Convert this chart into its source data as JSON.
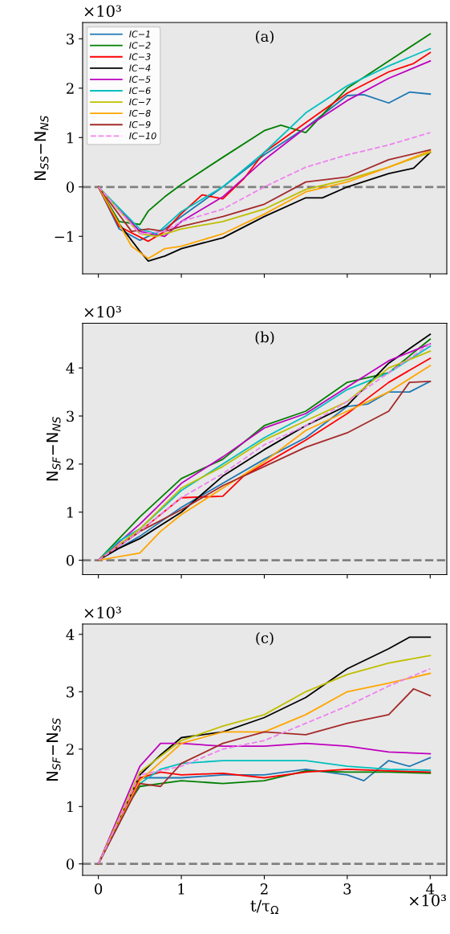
{
  "chart_data": [
    {
      "type": "line",
      "ylabel": "N$_{SS}$−N$_{NS}$",
      "annotations": [
        "(a)",
        "×10³"
      ],
      "xlim": [
        -0.19,
        4.2
      ],
      "xticks": [
        0,
        1,
        2,
        3,
        4
      ],
      "ylim": [
        -1.76,
        3.33
      ],
      "yticks": [
        {
          "value": -1,
          "label": "−1"
        },
        0,
        1,
        2,
        3
      ],
      "tick_labels": "y",
      "legend": "top left",
      "grid": false,
      "ref_lines": [
        {
          "axis": "y",
          "value": 0,
          "label": null,
          "color": "#808080",
          "line_style": "dashed"
        }
      ],
      "series": [
        {
          "name": "IC−1",
          "color": "#1f77b4",
          "x": [
            0,
            0.25,
            0.5,
            0.8,
            1,
            1.5,
            2,
            2.5,
            3,
            3.2,
            3.5,
            3.75,
            4
          ],
          "values": [
            0,
            -0.85,
            -1.08,
            -0.85,
            -0.6,
            0,
            0.65,
            1.2,
            1.85,
            1.87,
            1.7,
            1.92,
            1.88
          ]
        },
        {
          "name": "IC−2",
          "color": "#008000",
          "x": [
            0,
            0.25,
            0.5,
            0.6,
            0.8,
            1,
            1.5,
            2,
            2.2,
            2.5,
            3,
            3.5,
            4
          ],
          "values": [
            0,
            -0.7,
            -0.76,
            -0.49,
            -0.2,
            0.05,
            0.6,
            1.14,
            1.25,
            1.1,
            2.0,
            2.55,
            3.1
          ]
        },
        {
          "name": "IC−3",
          "color": "#ff0000",
          "x": [
            0,
            0.25,
            0.6,
            0.8,
            1,
            1.25,
            1.5,
            1.75,
            2,
            2.5,
            3,
            3.5,
            3.8,
            4
          ],
          "values": [
            0,
            -0.8,
            -1.1,
            -0.9,
            -0.54,
            -0.16,
            -0.24,
            0.16,
            0.7,
            1.3,
            1.9,
            2.33,
            2.5,
            2.72
          ]
        },
        {
          "name": "IC−4",
          "color": "#000000",
          "x": [
            0,
            0.25,
            0.5,
            0.6,
            0.8,
            1,
            1.5,
            2,
            2.5,
            2.7,
            3,
            3.5,
            3.8,
            4
          ],
          "values": [
            0,
            -0.75,
            -1.3,
            -1.5,
            -1.4,
            -1.25,
            -1.03,
            -0.6,
            -0.22,
            -0.22,
            0,
            0.27,
            0.38,
            0.7
          ]
        },
        {
          "name": "IC−5",
          "color": "#bf00bf",
          "x": [
            0,
            0.5,
            0.8,
            1,
            1.5,
            2,
            2.5,
            3,
            3.5,
            4
          ],
          "values": [
            0,
            -0.9,
            -1.0,
            -0.7,
            -0.2,
            0.55,
            1.2,
            1.75,
            2.2,
            2.55
          ]
        },
        {
          "name": "IC−6",
          "color": "#00bfbf",
          "x": [
            0,
            0.5,
            0.7,
            1,
            1.5,
            2,
            2.5,
            3,
            3.5,
            4
          ],
          "values": [
            0,
            -0.85,
            -0.95,
            -0.5,
            0,
            0.7,
            1.5,
            2.05,
            2.45,
            2.8
          ]
        },
        {
          "name": "IC−7",
          "color": "#bfbf00",
          "x": [
            0,
            0.5,
            0.7,
            1,
            1.5,
            2,
            2.5,
            3,
            3.5,
            4
          ],
          "values": [
            0,
            -0.95,
            -1.0,
            -0.85,
            -0.7,
            -0.45,
            -0.05,
            0.15,
            0.4,
            0.7
          ]
        },
        {
          "name": "IC−8",
          "color": "#ffa500",
          "x": [
            0,
            0.4,
            0.6,
            0.8,
            1,
            1.5,
            2,
            2.5,
            3,
            3.5,
            4
          ],
          "values": [
            0,
            -1.2,
            -1.45,
            -1.25,
            -1.2,
            -0.95,
            -0.55,
            -0.1,
            0.1,
            0.4,
            0.73
          ]
        },
        {
          "name": "IC−9",
          "color": "#a52a2a",
          "x": [
            0,
            0.4,
            0.6,
            0.8,
            1,
            1.5,
            2,
            2.5,
            3,
            3.5,
            4
          ],
          "values": [
            0,
            -0.9,
            -0.85,
            -0.9,
            -0.8,
            -0.6,
            -0.35,
            0.1,
            0.2,
            0.55,
            0.75
          ]
        },
        {
          "name": "IC−10",
          "color": "#ee82ee",
          "line_style": "dashed",
          "x": [
            0,
            0.5,
            0.8,
            1,
            1.5,
            2,
            2.5,
            3,
            3.5,
            4
          ],
          "values": [
            0,
            -0.95,
            -0.9,
            -0.7,
            -0.45,
            0,
            0.4,
            0.65,
            0.85,
            1.1
          ]
        }
      ]
    },
    {
      "type": "line",
      "ylabel": "N$_{SF}$−N$_{NS}$",
      "annotations": [
        "(b)",
        "×10³"
      ],
      "xlim": [
        -0.19,
        4.2
      ],
      "xticks": [
        0,
        1,
        2,
        3,
        4
      ],
      "ylim": [
        -0.3,
        4.93
      ],
      "yticks": [
        0,
        1,
        2,
        3,
        4
      ],
      "tick_labels": "y",
      "grid": false,
      "ref_lines": [
        {
          "axis": "y",
          "value": 0,
          "label": null,
          "color": "#808080",
          "line_style": "dashed"
        }
      ],
      "series": [
        {
          "color": "#1f77b4",
          "x": [
            0,
            0.5,
            1,
            1.5,
            2,
            2.5,
            3,
            3.25,
            3.5,
            3.75,
            4
          ],
          "values": [
            0,
            0.5,
            1.1,
            1.6,
            2.1,
            2.55,
            3.2,
            3.25,
            3.5,
            3.5,
            3.72
          ]
        },
        {
          "color": "#008000",
          "x": [
            0,
            0.5,
            1,
            1.5,
            2,
            2.5,
            3,
            3.5,
            4
          ],
          "values": [
            0,
            0.9,
            1.7,
            2.1,
            2.8,
            3.1,
            3.7,
            3.9,
            4.6
          ]
        },
        {
          "color": "#ff0000",
          "x": [
            0,
            0.5,
            1,
            1.5,
            1.75,
            2,
            2.5,
            3,
            3.5,
            4
          ],
          "values": [
            0,
            0.6,
            1.3,
            1.33,
            1.75,
            2.0,
            2.5,
            3.05,
            3.7,
            4.2
          ]
        },
        {
          "color": "#000000",
          "x": [
            0,
            0.25,
            0.5,
            1,
            1.5,
            2,
            2.5,
            3,
            3.5,
            4
          ],
          "values": [
            0,
            0.25,
            0.45,
            1.0,
            1.75,
            2.3,
            2.8,
            3.22,
            4.1,
            4.7
          ]
        },
        {
          "color": "#bf00bf",
          "x": [
            0,
            0.5,
            1,
            1.5,
            2,
            2.5,
            3,
            3.5,
            4
          ],
          "values": [
            0,
            0.75,
            1.6,
            2.15,
            2.75,
            3.05,
            3.6,
            4.15,
            4.5
          ]
        },
        {
          "color": "#00bfbf",
          "x": [
            0,
            0.25,
            0.5,
            1,
            1.5,
            2,
            2.5,
            3,
            3.5,
            4
          ],
          "values": [
            0,
            0.4,
            0.65,
            1.45,
            2.0,
            2.55,
            3.0,
            3.55,
            3.9,
            4.45
          ]
        },
        {
          "color": "#bfbf00",
          "x": [
            0,
            0.5,
            1,
            1.5,
            2,
            2.5,
            3,
            3.5,
            4
          ],
          "values": [
            0,
            0.65,
            1.5,
            1.95,
            2.5,
            2.9,
            3.3,
            4.0,
            4.35
          ]
        },
        {
          "color": "#ffa500",
          "x": [
            0,
            0.5,
            0.75,
            1,
            1.5,
            2,
            2.5,
            3,
            3.5,
            4
          ],
          "values": [
            0,
            0.15,
            0.6,
            0.95,
            1.5,
            2.05,
            2.7,
            3.1,
            3.5,
            4.05
          ]
        },
        {
          "color": "#a52a2a",
          "x": [
            0,
            0.5,
            1,
            1.5,
            2,
            2.5,
            3,
            3.5,
            3.75,
            4
          ],
          "values": [
            0,
            0.6,
            1.05,
            1.55,
            1.95,
            2.35,
            2.65,
            3.1,
            3.7,
            3.72
          ]
        },
        {
          "color": "#ee82ee",
          "line_style": "dashed",
          "x": [
            0,
            0.5,
            1,
            1.5,
            2,
            2.5,
            3,
            3.5,
            4
          ],
          "values": [
            0,
            0.6,
            1.3,
            1.8,
            2.4,
            2.8,
            3.3,
            3.9,
            4.5
          ]
        }
      ]
    },
    {
      "type": "line",
      "xlabel": "t/τ$_{Ω}$",
      "ylabel": "N$_{SF}$−N$_{SS}$",
      "annotations": [
        "(c)",
        "×10³",
        "×10³"
      ],
      "xlim": [
        -0.19,
        4.2
      ],
      "xticks": [
        0,
        1,
        2,
        3,
        4
      ],
      "ylim": [
        -0.2,
        4.18
      ],
      "yticks": [
        0,
        1,
        2,
        3,
        4
      ],
      "grid": false,
      "ref_lines": [
        {
          "axis": "y",
          "value": 0,
          "label": null,
          "color": "#808080",
          "line_style": "dashed"
        }
      ],
      "series": [
        {
          "color": "#1f77b4",
          "x": [
            0,
            0.5,
            1,
            1.5,
            2,
            2.5,
            3,
            3.2,
            3.5,
            3.75,
            4
          ],
          "values": [
            0,
            1.5,
            1.5,
            1.55,
            1.55,
            1.65,
            1.55,
            1.45,
            1.8,
            1.7,
            1.85
          ]
        },
        {
          "color": "#008000",
          "x": [
            0,
            0.25,
            0.5,
            1,
            1.5,
            2,
            2.5,
            3,
            3.5,
            4
          ],
          "values": [
            0,
            0.8,
            1.35,
            1.45,
            1.4,
            1.45,
            1.62,
            1.6,
            1.6,
            1.58
          ]
        },
        {
          "color": "#ff0000",
          "x": [
            0,
            0.5,
            0.75,
            1,
            1.5,
            2,
            2.5,
            3,
            3.5,
            4
          ],
          "values": [
            0,
            1.5,
            1.6,
            1.55,
            1.58,
            1.5,
            1.6,
            1.65,
            1.62,
            1.6
          ]
        },
        {
          "color": "#000000",
          "x": [
            0,
            0.5,
            0.75,
            1,
            1.5,
            2,
            2.5,
            3,
            3.5,
            3.75,
            4
          ],
          "values": [
            0,
            1.55,
            1.9,
            2.2,
            2.3,
            2.55,
            2.9,
            3.4,
            3.75,
            3.95,
            3.95
          ]
        },
        {
          "color": "#bf00bf",
          "x": [
            0,
            0.25,
            0.5,
            0.75,
            1,
            1.5,
            2,
            2.5,
            3,
            3.5,
            4
          ],
          "values": [
            0,
            0.85,
            1.7,
            2.1,
            2.1,
            2.05,
            2.05,
            2.1,
            2.05,
            1.95,
            1.92
          ]
        },
        {
          "color": "#00bfbf",
          "x": [
            0,
            0.5,
            0.75,
            1,
            1.5,
            2,
            2.5,
            3,
            3.5,
            4
          ],
          "values": [
            0,
            1.4,
            1.65,
            1.75,
            1.8,
            1.8,
            1.8,
            1.7,
            1.65,
            1.63
          ]
        },
        {
          "color": "#bfbf00",
          "x": [
            0,
            0.5,
            1,
            1.5,
            2,
            2.5,
            3,
            3.5,
            4
          ],
          "values": [
            0,
            1.6,
            2.15,
            2.4,
            2.6,
            3.0,
            3.3,
            3.5,
            3.63
          ]
        },
        {
          "color": "#ffa500",
          "x": [
            0,
            0.5,
            1,
            1.5,
            2,
            2.5,
            3,
            3.5,
            4
          ],
          "values": [
            0,
            1.45,
            2.1,
            2.3,
            2.3,
            2.6,
            3.0,
            3.15,
            3.32
          ]
        },
        {
          "color": "#a52a2a",
          "x": [
            0,
            0.5,
            0.75,
            1,
            1.5,
            2,
            2.5,
            3,
            3.5,
            3.8,
            4
          ],
          "values": [
            0,
            1.4,
            1.35,
            1.75,
            2.1,
            2.3,
            2.25,
            2.45,
            2.6,
            3.05,
            2.93
          ]
        },
        {
          "color": "#ee82ee",
          "line_style": "dashed",
          "x": [
            0,
            0.5,
            1,
            1.5,
            2,
            2.5,
            3,
            3.5,
            4
          ],
          "values": [
            0,
            1.55,
            1.7,
            2.0,
            2.15,
            2.45,
            2.75,
            3.1,
            3.4
          ]
        }
      ]
    }
  ]
}
